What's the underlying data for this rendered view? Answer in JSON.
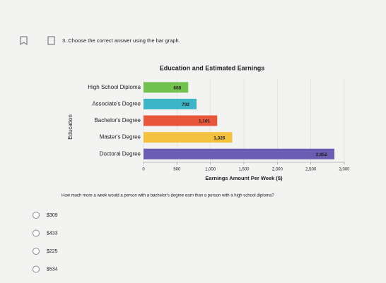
{
  "question": {
    "number_text": "3. Choose the correct answer using the bar graph.",
    "prompt": "How much more a week would a person with a bachelor's degree earn than a person with a high school diploma?",
    "choices": [
      "$309",
      "$433",
      "$225",
      "$534"
    ]
  },
  "chart_data": {
    "type": "hbar",
    "title": "Education and Estimated Earnings",
    "x_label": "Earnings Amount Per Week ($)",
    "y_label": "Education",
    "categories": [
      "High School Diploma",
      "Associate's Degree",
      "Bachelor's Degree",
      "Master's Degree",
      "Doctoral Degree"
    ],
    "values": [
      668,
      792,
      1101,
      1326,
      2852
    ],
    "value_labels": [
      "668",
      "792",
      "1,101",
      "1,326",
      "2,852"
    ],
    "colors": [
      "#72c250",
      "#3db5c6",
      "#e8573c",
      "#f3c23e",
      "#6b5db3"
    ],
    "xlim": [
      0,
      3000
    ],
    "xticks": [
      0,
      500,
      {
        "value": 1000,
        "label": "1,000"
      },
      {
        "value": 1500,
        "label": "1,500"
      },
      {
        "value": 2000,
        "label": "2,000"
      },
      {
        "value": 2500,
        "label": "2,500"
      },
      {
        "value": 3000,
        "label": "3,000"
      }
    ],
    "grid": true
  }
}
